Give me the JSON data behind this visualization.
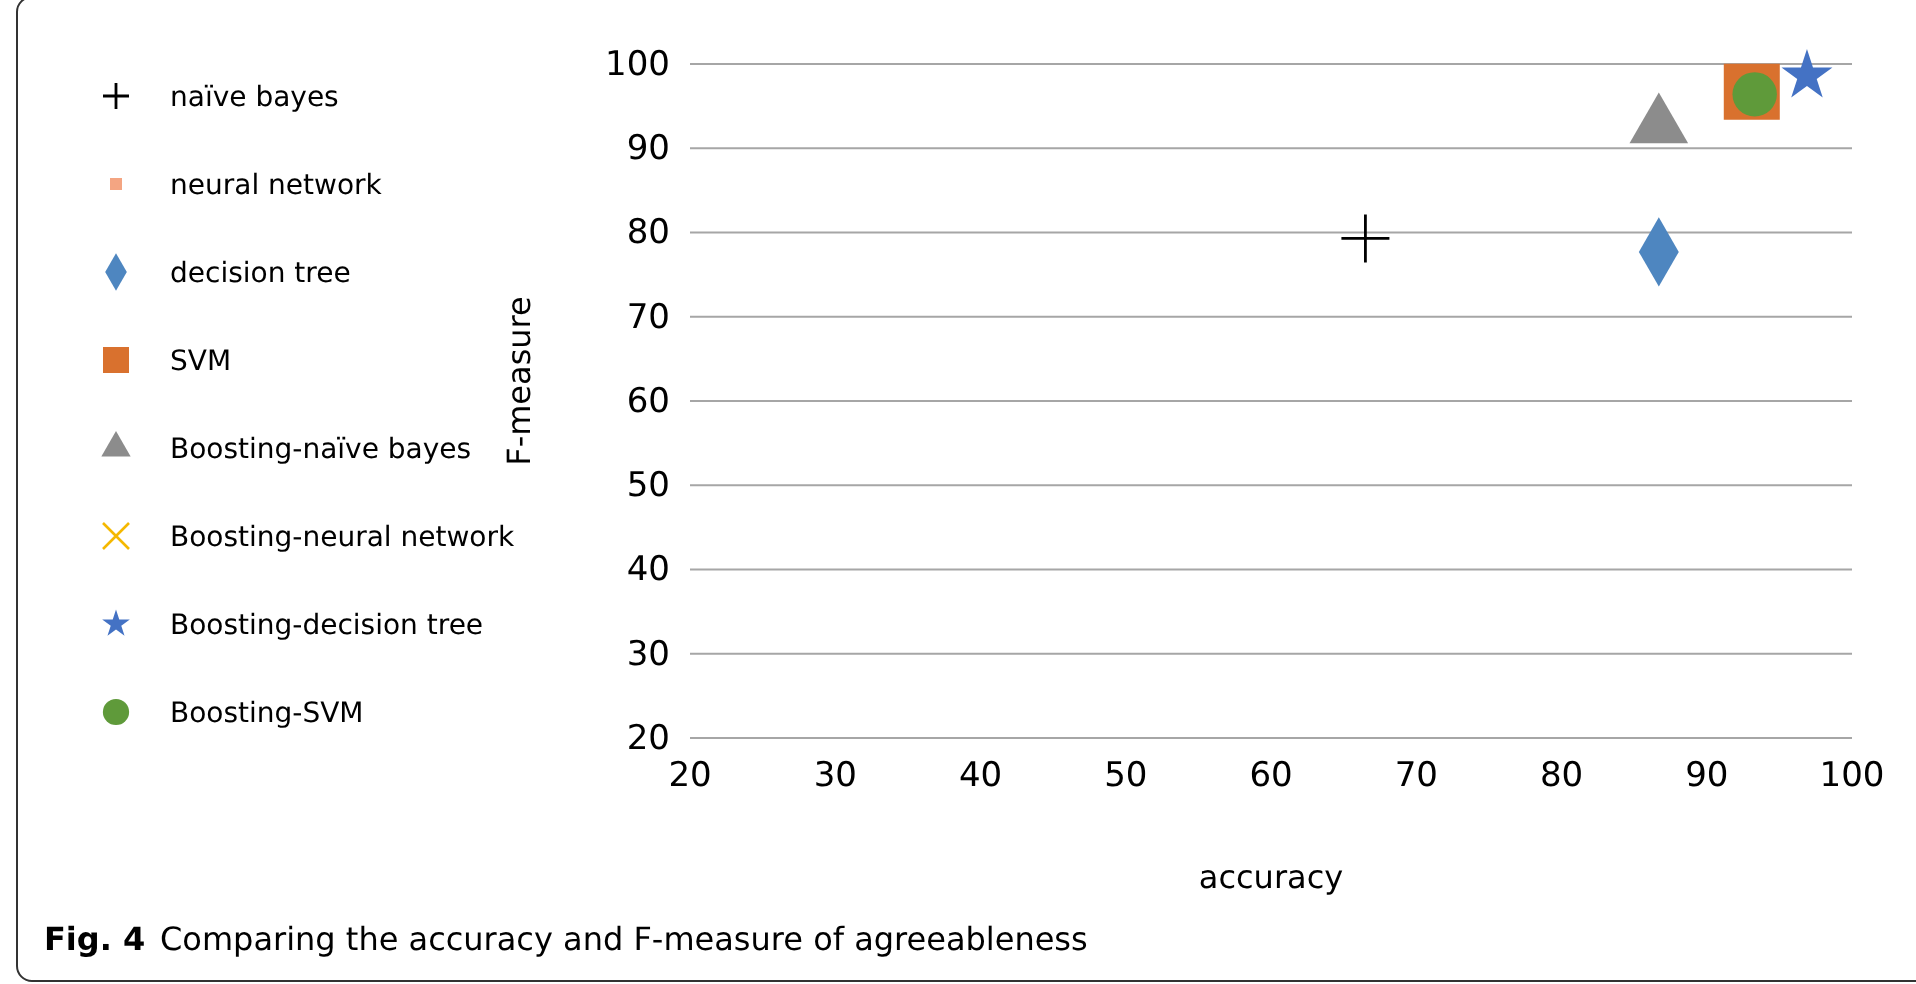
{
  "chart_data": {
    "type": "scatter",
    "xlabel": "accuracy",
    "ylabel": "F-measure",
    "xlim": [
      20,
      100
    ],
    "ylim": [
      20,
      100
    ],
    "xticks": [
      20,
      30,
      40,
      50,
      60,
      70,
      80,
      90,
      100
    ],
    "yticks": [
      20,
      30,
      40,
      50,
      60,
      70,
      80,
      90,
      100
    ],
    "grid": "y",
    "legend": "left",
    "annotations": [
      "Fig. 4",
      "Comparing the accuracy and F-measure of agreeableness"
    ],
    "series": [
      {
        "name": "naïve bayes",
        "color": "#000000",
        "marker": "cross",
        "x": [
          66.5
        ],
        "values": [
          79.3
        ]
      },
      {
        "name": "neural network",
        "color": "#f4a582",
        "marker": "square",
        "x": [
          null
        ],
        "values": [
          null
        ]
      },
      {
        "name": "decision tree",
        "color": "#4e86c0",
        "marker": "diamond",
        "x": [
          86.7
        ],
        "values": [
          77.7
        ]
      },
      {
        "name": "SVM",
        "color": "#d9712e",
        "marker": "square",
        "x": [
          93.1
        ],
        "values": [
          96.7
        ]
      },
      {
        "name": "Boosting-naïve bayes",
        "color": "#8c8c8c",
        "marker": "triangle",
        "x": [
          86.7
        ],
        "values": [
          92.6
        ]
      },
      {
        "name": "Boosting-neural network",
        "color": "#f5b800",
        "marker": "x",
        "x": [
          null
        ],
        "values": [
          null
        ]
      },
      {
        "name": "Boosting-decision tree",
        "color": "#4472c4",
        "marker": "star",
        "x": [
          96.9
        ],
        "values": [
          98.6
        ]
      },
      {
        "name": "Boosting-SVM",
        "color": "#5f9a3a",
        "marker": "circle",
        "x": [
          93.3
        ],
        "values": [
          96.4
        ]
      }
    ]
  }
}
